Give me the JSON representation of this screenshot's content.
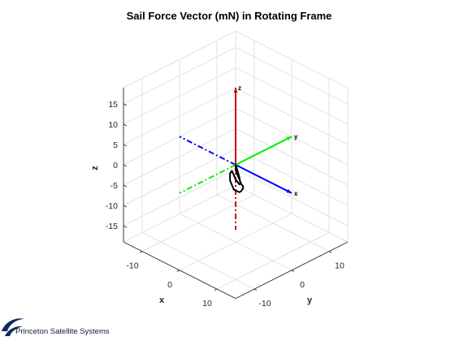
{
  "chart_data": {
    "type": "line",
    "title": "Sail Force Vector (mN) in Rotating Frame",
    "xlabel": "x",
    "ylabel": "y",
    "zlabel": "z",
    "xlim": [
      -15,
      15
    ],
    "ylim": [
      -15,
      15
    ],
    "zlim": [
      -19,
      19
    ],
    "xticks": [
      -10,
      0,
      10
    ],
    "yticks": [
      -10,
      0,
      10
    ],
    "zticks": [
      -15,
      -10,
      -5,
      0,
      5,
      10,
      15
    ],
    "grid": true,
    "view": "3d-isometric",
    "colors": {
      "x_axis": "#0000ff",
      "y_axis": "#00ee00",
      "z_axis": "#cc0000",
      "force_curve": "#000000",
      "grid": "#dcdcdc",
      "axes_box": "#262626"
    },
    "frame_vectors": [
      {
        "label": "x",
        "color": "#0000ff",
        "to": [
          15,
          0,
          0
        ],
        "negative_to": [
          -15,
          0,
          0
        ]
      },
      {
        "label": "y",
        "color": "#00ee00",
        "to": [
          0,
          15,
          0
        ],
        "negative_to": [
          0,
          -15,
          0
        ]
      },
      {
        "label": "z",
        "color": "#cc0000",
        "to": [
          0,
          0,
          19
        ],
        "negative_to": [
          0,
          0,
          -16
        ]
      }
    ],
    "force_curve": {
      "x": [
        0,
        1,
        2,
        4,
        6,
        8,
        10,
        11,
        11.5,
        11,
        9,
        7,
        5,
        3,
        1.5,
        0.5,
        0,
        0.5,
        1.5,
        3,
        3.5,
        2.5,
        1,
        0
      ],
      "y": [
        0,
        -1,
        -2,
        -3.5,
        -5,
        -6.5,
        -8,
        -9,
        -10,
        -10,
        -9.5,
        -8,
        -6.5,
        -4.5,
        -3,
        -2,
        -1,
        -1,
        -1.5,
        -2,
        -2.2,
        -1.5,
        -0.6,
        0
      ],
      "z": [
        0,
        0,
        0.5,
        1,
        1.5,
        2,
        3,
        3.5,
        3.5,
        3,
        2.5,
        2,
        1.5,
        1,
        0,
        -1,
        -1,
        -1.8,
        -2.2,
        -2.5,
        -2,
        -1.2,
        -0.4,
        0
      ]
    }
  },
  "logo": {
    "company": "Princeton Satellite Systems",
    "color": "#0d2a5c"
  }
}
